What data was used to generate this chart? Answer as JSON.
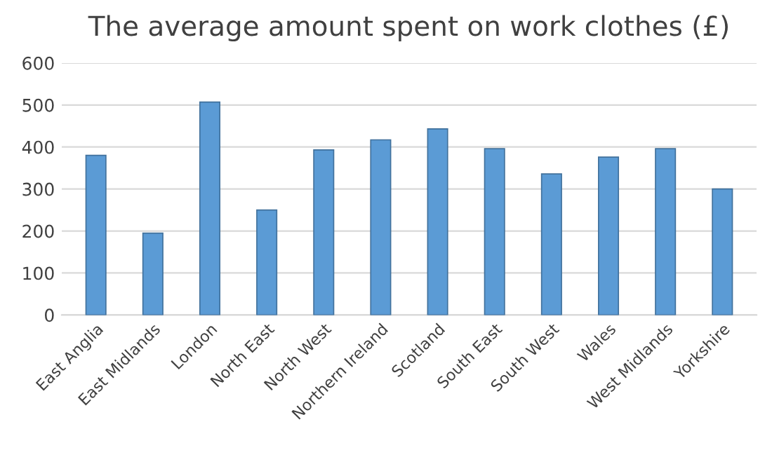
{
  "chart_data": {
    "type": "bar",
    "title": "The average amount spent on work clothes (£)",
    "categories": [
      "East Anglia",
      "East Midlands",
      "London",
      "North East",
      "North West",
      "Northern Ireland",
      "Scotland",
      "South East",
      "South West",
      "Wales",
      "West Midlands",
      "Yorkshire"
    ],
    "values": [
      380,
      195,
      507,
      250,
      393,
      417,
      443,
      396,
      336,
      376,
      396,
      300
    ],
    "color": "#5b9bd5",
    "ylim": [
      0,
      600
    ],
    "yticks": [
      0,
      100,
      200,
      300,
      400,
      500,
      600
    ],
    "grid": "y"
  }
}
